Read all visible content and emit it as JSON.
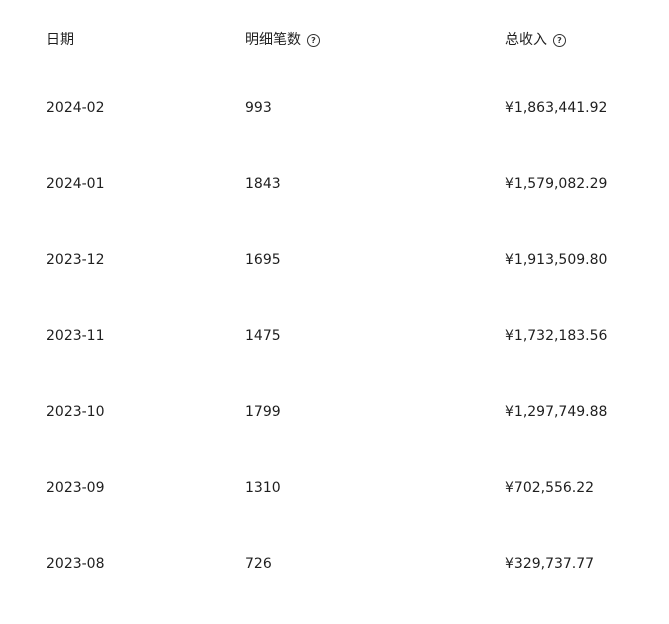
{
  "header": {
    "date": "日期",
    "count": "明细笔数",
    "income": "总收入",
    "help_icon": "?"
  },
  "rows": [
    {
      "date": "2024-02",
      "count": "993",
      "income": "¥1,863,441.92"
    },
    {
      "date": "2024-01",
      "count": "1843",
      "income": "¥1,579,082.29"
    },
    {
      "date": "2023-12",
      "count": "1695",
      "income": "¥1,913,509.80"
    },
    {
      "date": "2023-11",
      "count": "1475",
      "income": "¥1,732,183.56"
    },
    {
      "date": "2023-10",
      "count": "1799",
      "income": "¥1,297,749.88"
    },
    {
      "date": "2023-09",
      "count": "1310",
      "income": "¥702,556.22"
    },
    {
      "date": "2023-08",
      "count": "726",
      "income": "¥329,737.77"
    }
  ]
}
